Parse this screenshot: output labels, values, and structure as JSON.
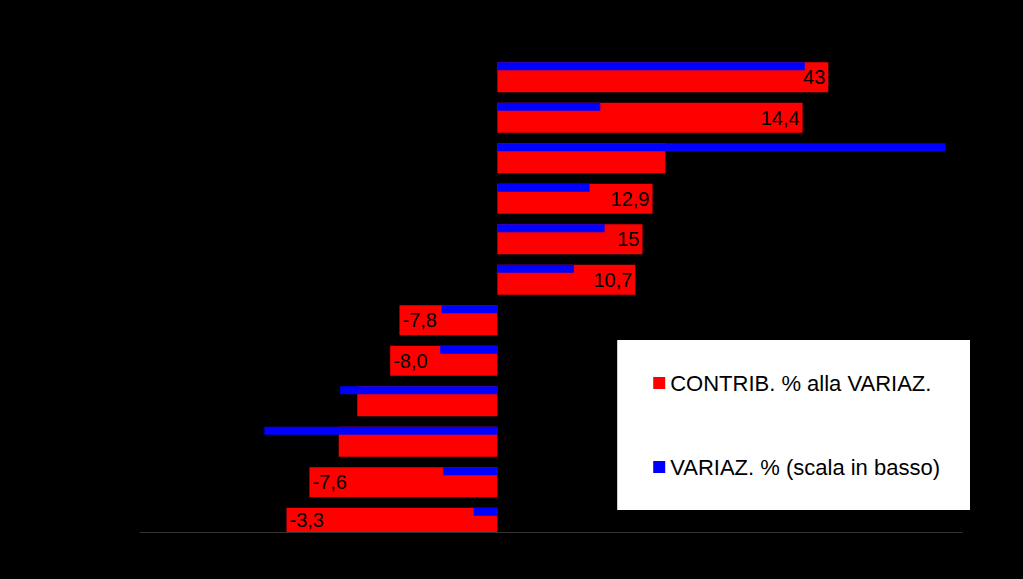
{
  "chart_data": {
    "type": "bar",
    "orientation": "horizontal",
    "categories": [
      null,
      null,
      null,
      null,
      null,
      null,
      null,
      null,
      null,
      null,
      null,
      null
    ],
    "series": [
      {
        "name": "CONTRIB. % alla VARIAZ.",
        "color": "#ff0000",
        "values": [
          46.3,
          42.7,
          23.5,
          21.7,
          20.3,
          19.3,
          -13.7,
          -15.0,
          -19.6,
          -22.2,
          -26.3,
          -29.5
        ]
      },
      {
        "name": "VARIAZ. % (scala in basso)",
        "color": "#0000ff",
        "values": [
          43,
          14.4,
          62.7,
          12.9,
          15,
          10.7,
          -7.8,
          -8.0,
          -22,
          -32.6,
          -7.6,
          -3.3
        ],
        "value_labels": [
          "43",
          "14,4",
          null,
          "12,9",
          "15",
          "10,7",
          "-7,8",
          "-8,0",
          null,
          null,
          "-7,6",
          "-3,3"
        ]
      }
    ],
    "xlim": [
      -50,
      65
    ],
    "tick_labels": false,
    "grid": false,
    "legend": "lower right",
    "data_labels": true
  }
}
